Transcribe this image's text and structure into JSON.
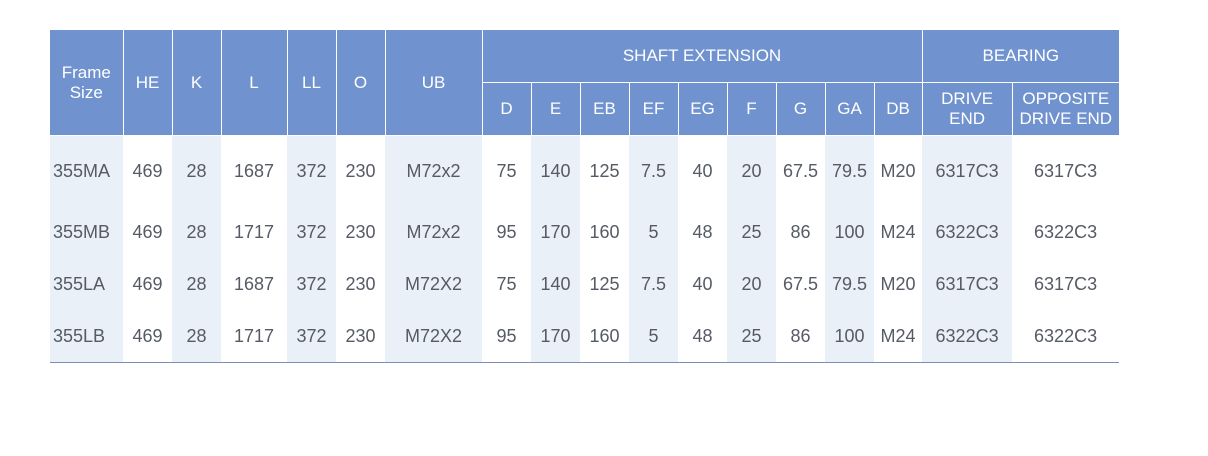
{
  "header": {
    "frame_size": "Frame Size",
    "he": "HE",
    "k": "K",
    "l": "L",
    "ll": "LL",
    "o": "O",
    "ub": "UB",
    "shaft_extension": "SHAFT EXTENSION",
    "bearing": "BEARING",
    "d": "D",
    "e": "E",
    "eb": "EB",
    "ef": "EF",
    "eg": "EG",
    "f": "F",
    "g": "G",
    "ga": "GA",
    "db": "DB",
    "drive_end": "DRIVE END",
    "opposite_drive_end": "OPPOSITE DRIVE END"
  },
  "rows": [
    {
      "frame": "355MA",
      "he": "469",
      "k": "28",
      "l": "1687",
      "ll": "372",
      "o": "230",
      "ub": "M72x2",
      "d": "75",
      "e": "140",
      "eb": "125",
      "ef": "7.5",
      "eg": "40",
      "f": "20",
      "g": "67.5",
      "ga": "79.5",
      "db": "M20",
      "drive": "6317C3",
      "opposite": "6317C3"
    },
    {
      "frame": "355MB",
      "he": "469",
      "k": "28",
      "l": "1717",
      "ll": "372",
      "o": "230",
      "ub": "M72x2",
      "d": "95",
      "e": "170",
      "eb": "160",
      "ef": "5",
      "eg": "48",
      "f": "25",
      "g": "86",
      "ga": "100",
      "db": "M24",
      "drive": "6322C3",
      "opposite": "6322C3"
    },
    {
      "frame": "355LA",
      "he": "469",
      "k": "28",
      "l": "1687",
      "ll": "372",
      "o": "230",
      "ub": "M72X2",
      "d": "75",
      "e": "140",
      "eb": "125",
      "ef": "7.5",
      "eg": "40",
      "f": "20",
      "g": "67.5",
      "ga": "79.5",
      "db": "M20",
      "drive": "6317C3",
      "opposite": "6317C3"
    },
    {
      "frame": "355LB",
      "he": "469",
      "k": "28",
      "l": "1717",
      "ll": "372",
      "o": "230",
      "ub": "M72X2",
      "d": "95",
      "e": "170",
      "eb": "160",
      "ef": "5",
      "eg": "48",
      "f": "25",
      "g": "86",
      "ga": "100",
      "db": "M24",
      "drive": "6322C3",
      "opposite": "6322C3"
    }
  ],
  "colors": {
    "header_bg": "#7093cf",
    "alt_column_bg": "#eaf0f8",
    "text": "#555a64"
  }
}
